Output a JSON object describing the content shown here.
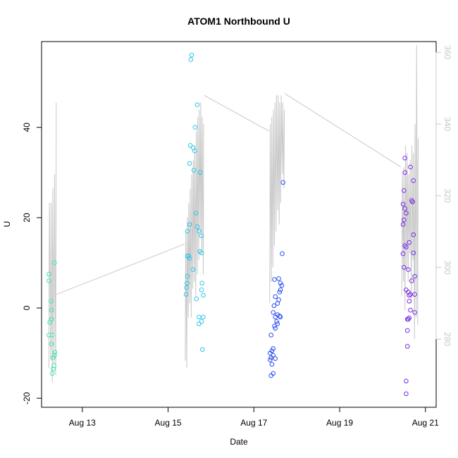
{
  "chart_data": {
    "type": "scatter",
    "title": "ATOM1 Northbound U",
    "xlabel": "Date",
    "ylabel": "U",
    "x_ticks": [
      "Aug 13",
      "Aug 15",
      "Aug 17",
      "Aug 19",
      "Aug 21"
    ],
    "x_tick_days": [
      13,
      15,
      17,
      19,
      21
    ],
    "xlim": [
      12.05,
      21.25
    ],
    "ylim": [
      -22,
      59
    ],
    "y_ticks": [
      -20,
      0,
      20,
      40
    ],
    "y2_ticks": [
      280,
      300,
      320,
      340,
      360
    ],
    "y2lim": [
      261,
      363
    ],
    "grid": false,
    "scatter_series": [
      {
        "color": "#3fe8a8",
        "points": [
          [
            12.22,
            7.5
          ],
          [
            12.22,
            6.0
          ],
          [
            12.24,
            -3.2
          ],
          [
            12.22,
            -6.0
          ],
          [
            12.27,
            1.5
          ],
          [
            12.28,
            -0.5
          ],
          [
            12.28,
            -2.5
          ],
          [
            12.28,
            -8.0
          ],
          [
            12.3,
            -6.0
          ],
          [
            12.32,
            -11.0
          ],
          [
            12.32,
            -13.5
          ],
          [
            12.3,
            -14.5
          ],
          [
            12.34,
            -12.8
          ],
          [
            12.35,
            -10.5
          ],
          [
            12.36,
            -9.8
          ],
          [
            12.35,
            10.0
          ]
        ]
      },
      {
        "color": "#2bc6ea",
        "points": [
          [
            15.55,
            56.0
          ],
          [
            15.53,
            55.0
          ],
          [
            15.68,
            45.0
          ],
          [
            15.63,
            40.0
          ],
          [
            15.52,
            36.0
          ],
          [
            15.58,
            35.5
          ],
          [
            15.62,
            34.8
          ],
          [
            15.5,
            32.0
          ],
          [
            15.6,
            30.5
          ],
          [
            15.75,
            30.0
          ],
          [
            15.65,
            21.0
          ],
          [
            15.5,
            18.5
          ],
          [
            15.68,
            18.0
          ],
          [
            15.72,
            17.0
          ],
          [
            15.45,
            17.0
          ],
          [
            15.78,
            16.0
          ],
          [
            15.74,
            12.5
          ],
          [
            15.78,
            12.2
          ],
          [
            15.45,
            11.5
          ],
          [
            15.48,
            11.5
          ],
          [
            15.5,
            11.0
          ],
          [
            15.58,
            8.5
          ],
          [
            15.45,
            7.0
          ],
          [
            15.44,
            5.5
          ],
          [
            15.79,
            5.5
          ],
          [
            15.43,
            4.5
          ],
          [
            15.78,
            4.0
          ],
          [
            15.42,
            3.0
          ],
          [
            15.82,
            2.8
          ],
          [
            15.66,
            2.0
          ],
          [
            15.72,
            -2.0
          ],
          [
            15.82,
            -2.0
          ],
          [
            15.78,
            -3.0
          ],
          [
            15.72,
            -3.5
          ],
          [
            15.8,
            -9.2
          ]
        ]
      },
      {
        "color": "#2a4ff0",
        "points": [
          [
            17.68,
            27.8
          ],
          [
            17.66,
            12.0
          ],
          [
            17.48,
            6.3
          ],
          [
            17.58,
            6.5
          ],
          [
            17.62,
            5.5
          ],
          [
            17.65,
            5.0
          ],
          [
            17.62,
            4.0
          ],
          [
            17.6,
            3.5
          ],
          [
            17.5,
            2.5
          ],
          [
            17.58,
            1.8
          ],
          [
            17.55,
            1.0
          ],
          [
            17.47,
            0.5
          ],
          [
            17.45,
            -1.0
          ],
          [
            17.55,
            -1.5
          ],
          [
            17.5,
            -2.0
          ],
          [
            17.6,
            -1.8
          ],
          [
            17.62,
            -2.0
          ],
          [
            17.53,
            -3.0
          ],
          [
            17.55,
            -3.5
          ],
          [
            17.48,
            -4.0
          ],
          [
            17.5,
            -4.5
          ],
          [
            17.4,
            -6.0
          ],
          [
            17.45,
            -9.0
          ],
          [
            17.42,
            -9.5
          ],
          [
            17.38,
            -10.0
          ],
          [
            17.45,
            -10.5
          ],
          [
            17.4,
            -11.0
          ],
          [
            17.38,
            -11.5
          ],
          [
            17.5,
            -11.2
          ],
          [
            17.42,
            -12.5
          ],
          [
            17.45,
            -14.5
          ],
          [
            17.4,
            -15.0
          ]
        ]
      },
      {
        "color": "#7a2ae8",
        "points": [
          [
            20.52,
            33.2
          ],
          [
            20.52,
            30.0
          ],
          [
            20.72,
            28.2
          ],
          [
            20.65,
            31.2
          ],
          [
            20.5,
            26.0
          ],
          [
            20.68,
            23.8
          ],
          [
            20.7,
            23.5
          ],
          [
            20.48,
            23.0
          ],
          [
            20.52,
            22.0
          ],
          [
            20.55,
            21.0
          ],
          [
            20.5,
            19.5
          ],
          [
            20.48,
            18.5
          ],
          [
            20.72,
            16.2
          ],
          [
            20.62,
            14.5
          ],
          [
            20.52,
            13.8
          ],
          [
            20.55,
            13.5
          ],
          [
            20.72,
            12.2
          ],
          [
            20.48,
            12.0
          ],
          [
            20.6,
            8.5
          ],
          [
            20.5,
            9.0
          ],
          [
            20.75,
            7.0
          ],
          [
            20.68,
            6.0
          ],
          [
            20.55,
            4.0
          ],
          [
            20.6,
            3.5
          ],
          [
            20.65,
            3.0
          ],
          [
            20.62,
            2.8
          ],
          [
            20.75,
            3.0
          ],
          [
            20.62,
            1.5
          ],
          [
            20.65,
            -0.5
          ],
          [
            20.75,
            -1.0
          ],
          [
            20.62,
            -2.2
          ],
          [
            20.58,
            -2.5
          ],
          [
            20.6,
            -2.5
          ],
          [
            20.58,
            -5.0
          ],
          [
            20.58,
            -8.5
          ],
          [
            20.55,
            -16.2
          ],
          [
            20.55,
            -19.0
          ]
        ]
      }
    ],
    "line_series": {
      "color": "#c8c8c8",
      "axis": "right",
      "groups": [
        {
          "start": 12.22,
          "end": 12.38,
          "lows": [
            272,
            274,
            268,
            273,
            270
          ],
          "highs": [
            318,
            318,
            322,
            326,
            346
          ]
        },
        {
          "start": 15.4,
          "end": 15.82,
          "lows": [
            274,
            272,
            286,
            290,
            286,
            294,
            296,
            292,
            298,
            302,
            310,
            304,
            298
          ],
          "highs": [
            310,
            314,
            318,
            322,
            326,
            330,
            334,
            338,
            342,
            344,
            346,
            342,
            340
          ]
        },
        {
          "start": 17.37,
          "end": 17.7,
          "lows": [
            290,
            296,
            300,
            306,
            310,
            316,
            312,
            318,
            326,
            322
          ],
          "highs": [
            340,
            342,
            344,
            346,
            348,
            348,
            346,
            348,
            346,
            344
          ]
        },
        {
          "start": 20.45,
          "end": 20.82,
          "lows": [
            292,
            296,
            288,
            300,
            296,
            304,
            290,
            302,
            280,
            286,
            284
          ],
          "highs": [
            326,
            328,
            334,
            332,
            326,
            330,
            334,
            332,
            340,
            362,
            336
          ]
        }
      ],
      "connectors": [
        [
          [
            12.4,
            292.5
          ],
          [
            15.38,
            306.5
          ]
        ],
        [
          [
            15.84,
            348.0
          ],
          [
            17.36,
            338.0
          ]
        ],
        [
          [
            17.72,
            348.5
          ],
          [
            20.43,
            328.0
          ]
        ]
      ]
    }
  }
}
